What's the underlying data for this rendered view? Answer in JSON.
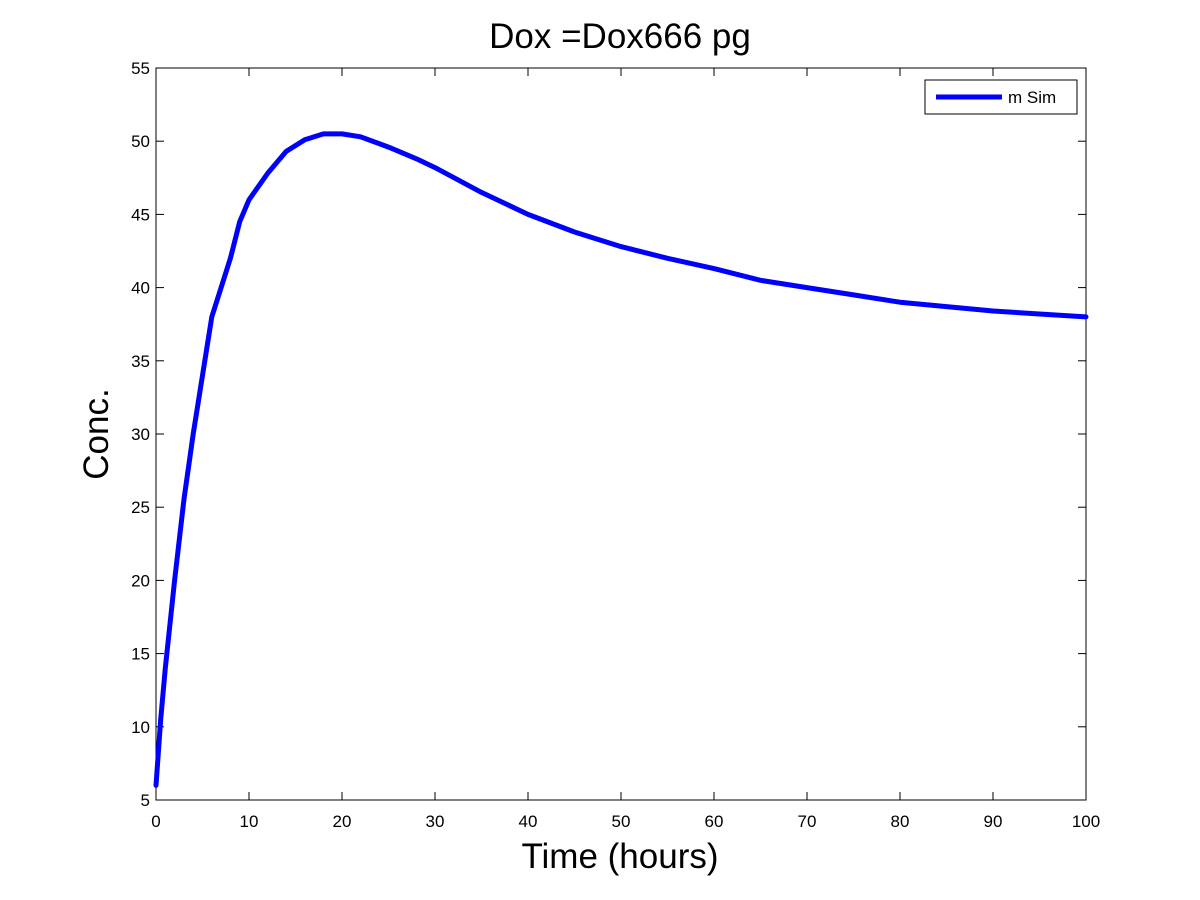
{
  "chart_data": {
    "type": "line",
    "title": "Dox =Dox666 pg",
    "xlabel": "Time (hours)",
    "ylabel": "Conc.",
    "xlim": [
      0,
      100
    ],
    "ylim": [
      5,
      55
    ],
    "xticks": [
      0,
      10,
      20,
      30,
      40,
      50,
      60,
      70,
      80,
      90,
      100
    ],
    "yticks": [
      5,
      10,
      15,
      20,
      25,
      30,
      35,
      40,
      45,
      50,
      55
    ],
    "grid": false,
    "legend_position": "top-right",
    "series": [
      {
        "name": "m Sim",
        "color": "#0000ff",
        "x": [
          0,
          0.5,
          1,
          2,
          3,
          4,
          5,
          6,
          7,
          8,
          9,
          10,
          12,
          14,
          16,
          18,
          20,
          22,
          25,
          28,
          30,
          35,
          40,
          45,
          50,
          55,
          60,
          65,
          70,
          75,
          80,
          85,
          90,
          95,
          100
        ],
        "y": [
          6,
          10.5,
          14,
          20,
          25.5,
          30,
          34,
          38,
          40,
          42,
          44.5,
          46,
          47.8,
          49.3,
          50.1,
          50.5,
          50.5,
          50.3,
          49.6,
          48.8,
          48.2,
          46.5,
          45,
          43.8,
          42.8,
          42,
          41.3,
          40.5,
          40,
          39.5,
          39,
          38.7,
          38.4,
          38.2,
          38
        ]
      }
    ]
  }
}
